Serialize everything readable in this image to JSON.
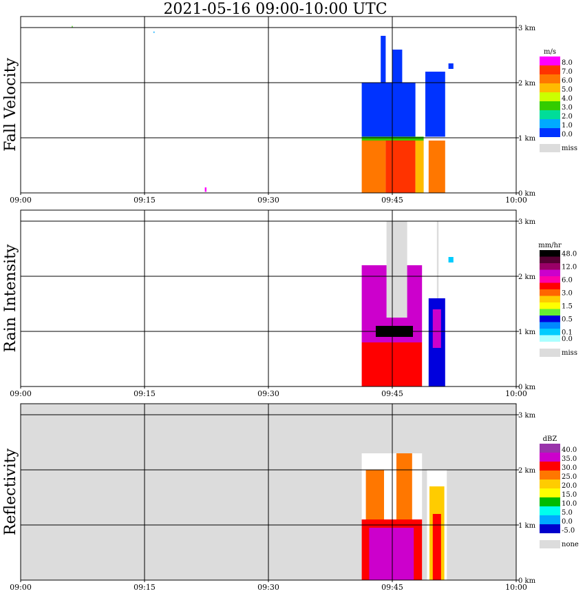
{
  "title": "2021-05-16   09:00-10:00 UTC",
  "time_ticks": [
    "09:00",
    "09:15",
    "09:30",
    "09:45",
    "10:00"
  ],
  "height_ticks": [
    "0 km",
    "1 km",
    "2 km",
    "3 km"
  ],
  "chart_data": [
    {
      "type": "heatmap",
      "ylabel": "Fall Velocity",
      "xlim": [
        "09:00",
        "10:00"
      ],
      "ylim_km": [
        0,
        3.2
      ],
      "grid": true,
      "legend": {
        "unit": "m/s",
        "labels": [
          "8.0",
          "7.0",
          "6.0",
          "5.0",
          "4.0",
          "3.0",
          "2.0",
          "1.0",
          "0.0"
        ],
        "colors": [
          "#ff00ff",
          "#ff3300",
          "#ff7700",
          "#ffbb00",
          "#ccff00",
          "#33cc00",
          "#00dd99",
          "#00aaff",
          "#0033ff"
        ],
        "missing_label": "miss",
        "missing_color": "#dcdcdc"
      },
      "cells": [
        {
          "t0": 41.3,
          "t1": 44.2,
          "z0": 0.0,
          "z1": 0.95,
          "c": "#ff7700"
        },
        {
          "t0": 44.2,
          "t1": 47.8,
          "z0": 0.0,
          "z1": 0.95,
          "c": "#ff3300"
        },
        {
          "t0": 47.8,
          "t1": 48.8,
          "z0": 0.0,
          "z1": 0.95,
          "c": "#ffbb00"
        },
        {
          "t0": 49.4,
          "t1": 51.4,
          "z0": 0.0,
          "z1": 0.95,
          "c": "#ff7700"
        },
        {
          "t0": 41.3,
          "t1": 48.8,
          "z0": 0.95,
          "z1": 1.02,
          "c": "#33cc00"
        },
        {
          "t0": 41.3,
          "t1": 47.8,
          "z0": 1.02,
          "z1": 2.0,
          "c": "#0033ff"
        },
        {
          "t0": 43.6,
          "t1": 44.2,
          "z0": 2.0,
          "z1": 2.85,
          "c": "#0033ff"
        },
        {
          "t0": 45.0,
          "t1": 46.2,
          "z0": 2.0,
          "z1": 2.6,
          "c": "#0033ff"
        },
        {
          "t0": 49.0,
          "t1": 51.4,
          "z0": 1.02,
          "z1": 2.2,
          "c": "#0033ff"
        },
        {
          "t0": 51.8,
          "t1": 52.4,
          "z0": 2.25,
          "z1": 2.35,
          "c": "#0033ff"
        },
        {
          "t0": 6.2,
          "t1": 6.3,
          "z0": 3.0,
          "z1": 3.03,
          "c": "#33cc00"
        },
        {
          "t0": 16.1,
          "t1": 16.2,
          "z0": 2.9,
          "z1": 2.93,
          "c": "#00aaff"
        },
        {
          "t0": 22.3,
          "t1": 22.5,
          "z0": 0.02,
          "z1": 0.1,
          "c": "#ff00ff"
        }
      ]
    },
    {
      "type": "heatmap",
      "ylabel": "Rain Intensity",
      "xlim": [
        "09:00",
        "10:00"
      ],
      "ylim_km": [
        0,
        3.2
      ],
      "grid": true,
      "legend": {
        "unit": "mm/hr",
        "labels": [
          "48.0",
          "",
          "12.0",
          "",
          "6.0",
          "",
          "3.0",
          "",
          "1.5",
          "",
          "0.5",
          "",
          "0.1",
          "0.0"
        ],
        "colors": [
          "#000000",
          "#550033",
          "#990066",
          "#cc00cc",
          "#ff00aa",
          "#ff0000",
          "#ff6600",
          "#ffcc00",
          "#ffff00",
          "#66ee33",
          "#0000dd",
          "#0088ff",
          "#00ccff",
          "#aaffff"
        ],
        "missing_label": "miss",
        "missing_color": "#dcdcdc"
      },
      "cells": [
        {
          "t0": 44.3,
          "t1": 46.8,
          "z0": 1.25,
          "z1": 3.0,
          "c": "#dcdcdc"
        },
        {
          "t0": 50.4,
          "t1": 50.6,
          "z0": 0.0,
          "z1": 3.0,
          "c": "#dcdcdc"
        },
        {
          "t0": 41.3,
          "t1": 48.6,
          "z0": 0.0,
          "z1": 0.8,
          "c": "#ff0000"
        },
        {
          "t0": 41.3,
          "t1": 48.6,
          "z0": 0.8,
          "z1": 1.25,
          "c": "#cc00cc"
        },
        {
          "t0": 43.0,
          "t1": 47.5,
          "z0": 0.9,
          "z1": 1.1,
          "c": "#000000"
        },
        {
          "t0": 41.3,
          "t1": 44.3,
          "z0": 1.25,
          "z1": 2.2,
          "c": "#cc00cc"
        },
        {
          "t0": 46.8,
          "t1": 48.6,
          "z0": 1.25,
          "z1": 2.2,
          "c": "#cc00cc"
        },
        {
          "t0": 49.4,
          "t1": 51.4,
          "z0": 0.0,
          "z1": 1.6,
          "c": "#0000dd"
        },
        {
          "t0": 49.9,
          "t1": 50.9,
          "z0": 0.7,
          "z1": 1.4,
          "c": "#cc00cc"
        },
        {
          "t0": 51.8,
          "t1": 52.4,
          "z0": 2.25,
          "z1": 2.35,
          "c": "#00ccff"
        }
      ]
    },
    {
      "type": "heatmap",
      "ylabel": "Reflectivity",
      "xlim": [
        "09:00",
        "10:00"
      ],
      "ylim_km": [
        0,
        3.2
      ],
      "grid": true,
      "background_color": "#dcdcdc",
      "legend": {
        "unit": "dBZ",
        "labels": [
          "40.0",
          "35.0",
          "30.0",
          "25.0",
          "20.0",
          "15.0",
          "10.0",
          "5.0",
          "0.0",
          "-5.0"
        ],
        "colors": [
          "#9933aa",
          "#cc00cc",
          "#ff0000",
          "#ff7700",
          "#ffcc00",
          "#ffff00",
          "#00bb00",
          "#00ffee",
          "#00aaff",
          "#0000cc"
        ],
        "missing_label": "none",
        "missing_color": "#dcdcdc"
      },
      "cells": [
        {
          "t0": 41.3,
          "t1": 48.6,
          "z0": 0.0,
          "z1": 2.3,
          "c": "#ffffff"
        },
        {
          "t0": 49.2,
          "t1": 51.6,
          "z0": 0.0,
          "z1": 2.0,
          "c": "#ffffff"
        },
        {
          "t0": 41.3,
          "t1": 48.6,
          "z0": 0.0,
          "z1": 1.1,
          "c": "#ff0000"
        },
        {
          "t0": 42.2,
          "t1": 47.6,
          "z0": 0.0,
          "z1": 0.95,
          "c": "#cc00cc"
        },
        {
          "t0": 41.8,
          "t1": 44.0,
          "z0": 1.1,
          "z1": 2.0,
          "c": "#ff7700"
        },
        {
          "t0": 45.5,
          "t1": 47.4,
          "z0": 1.1,
          "z1": 2.3,
          "c": "#ff7700"
        },
        {
          "t0": 49.5,
          "t1": 51.3,
          "z0": 0.0,
          "z1": 1.7,
          "c": "#ffcc00"
        },
        {
          "t0": 49.9,
          "t1": 50.9,
          "z0": 0.0,
          "z1": 1.2,
          "c": "#ff0000"
        }
      ]
    }
  ]
}
